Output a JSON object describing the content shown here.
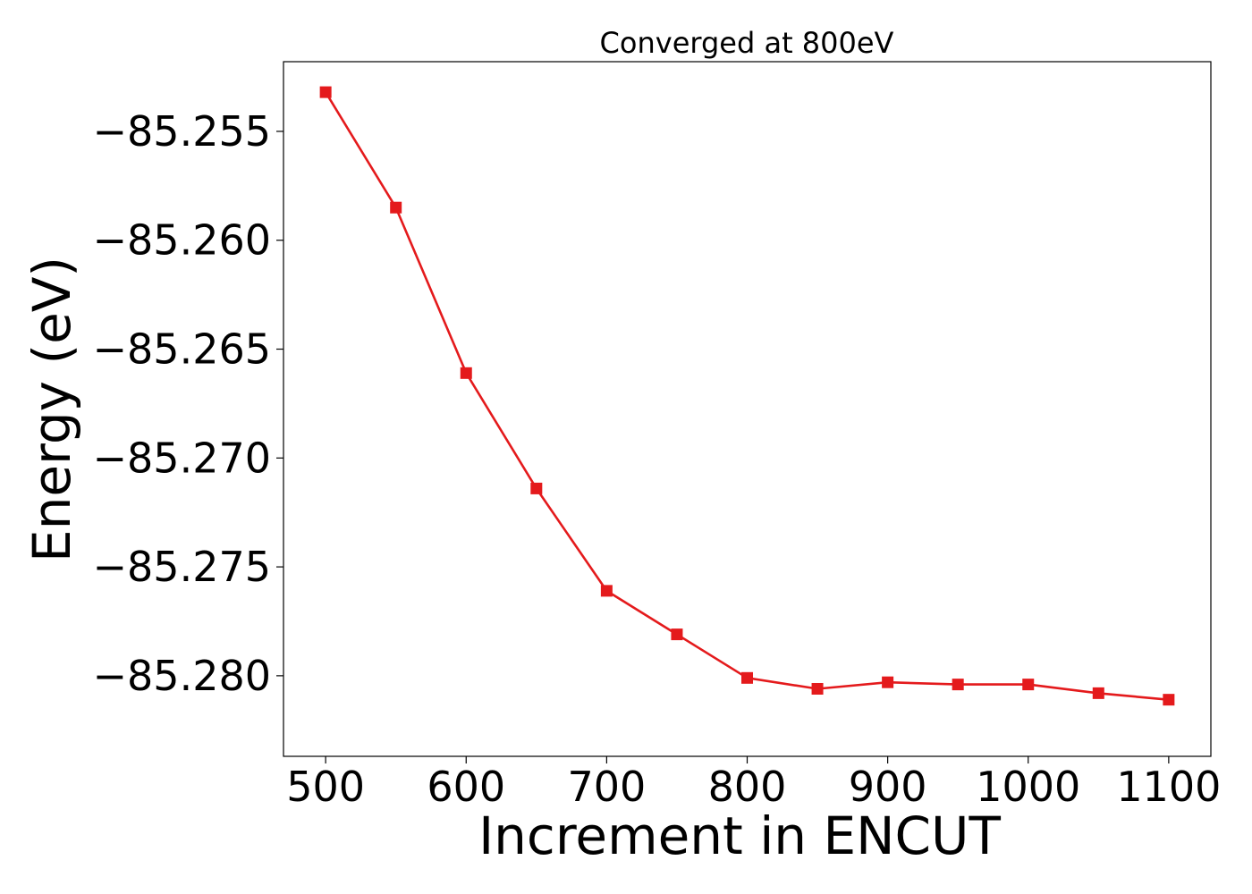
{
  "chart_data": {
    "type": "line",
    "title": "Converged at 800eV",
    "xlabel": "Increment in ENCUT",
    "ylabel": "Energy (eV)",
    "x": [
      500,
      550,
      600,
      650,
      700,
      750,
      800,
      850,
      900,
      950,
      1000,
      1050,
      1100
    ],
    "series": [
      {
        "values": [
          -85.2532,
          -85.2585,
          -85.2661,
          -85.2714,
          -85.2761,
          -85.2781,
          -85.2801,
          -85.2806,
          -85.2803,
          -85.2804,
          -85.2804,
          -85.2808,
          -85.2811
        ],
        "color": "#e41a1c",
        "marker": "square"
      }
    ],
    "xlim": [
      470,
      1130
    ],
    "ylim": [
      -85.2837,
      -85.2518
    ],
    "xticks": [
      500,
      600,
      700,
      800,
      900,
      1000,
      1100
    ],
    "yticks": [
      -85.255,
      -85.26,
      -85.265,
      -85.27,
      -85.275,
      -85.28
    ],
    "ytick_labels": [
      "−85.255",
      "−85.260",
      "−85.265",
      "−85.270",
      "−85.275",
      "−85.280"
    ],
    "grid": false,
    "legend": "none"
  }
}
